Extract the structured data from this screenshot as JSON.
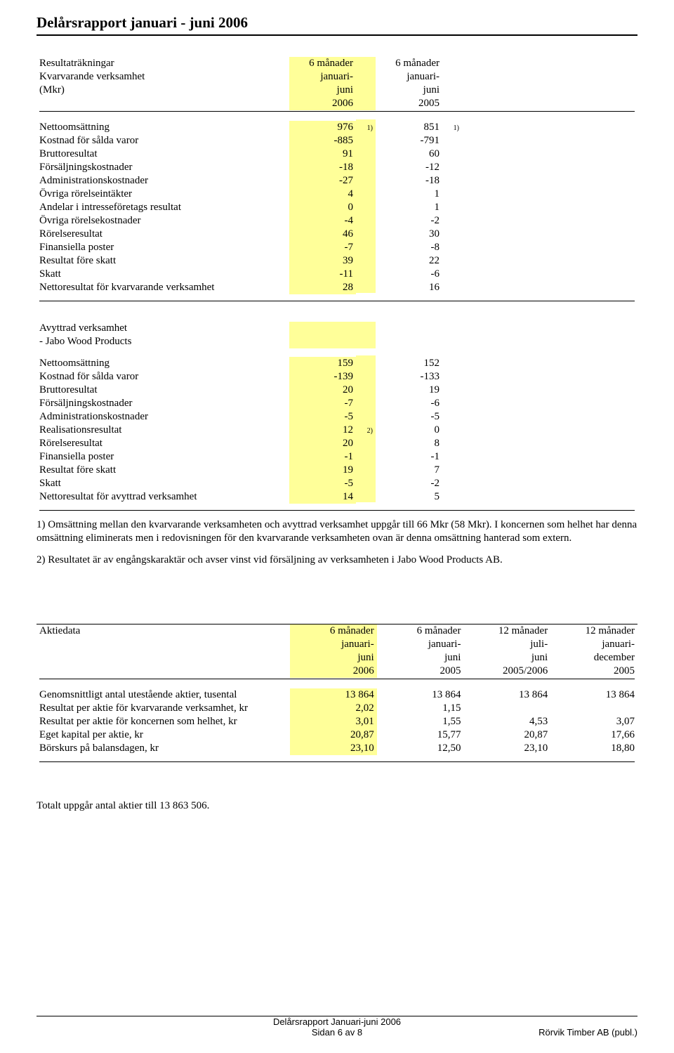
{
  "title": "Delårsrapport januari - juni 2006",
  "colors": {
    "highlight": "#ffff99",
    "text": "#000000",
    "bg": "#ffffff"
  },
  "t1": {
    "h1": {
      "r1": "Resultaträkningar",
      "r2": "Kvarvarande verksamhet",
      "r3": "(Mkr)"
    },
    "h2": {
      "l1": "6 månader",
      "l2": "januari-",
      "l3": "juni",
      "l4": "2006"
    },
    "h3": {
      "l1": "6 månader",
      "l2": "januari-",
      "l3": "juni",
      "l4": "2005"
    },
    "rows": [
      {
        "label": "Nettoomsättning",
        "a": "976",
        "an": "1)",
        "b": "851",
        "bn": "1)",
        "bold": false
      },
      {
        "label": "Kostnad för sålda varor",
        "a": "-885",
        "an": "",
        "b": "-791",
        "bn": "",
        "bold": false
      },
      {
        "label": "Bruttoresultat",
        "a": "91",
        "an": "",
        "b": "60",
        "bn": "",
        "bold": true
      },
      {
        "label": "Försäljningskostnader",
        "a": "-18",
        "an": "",
        "b": "-12",
        "bn": "",
        "bold": false
      },
      {
        "label": "Administrationskostnader",
        "a": "-27",
        "an": "",
        "b": "-18",
        "bn": "",
        "bold": false
      },
      {
        "label": "Övriga rörelseintäkter",
        "a": "4",
        "an": "",
        "b": "1",
        "bn": "",
        "bold": false
      },
      {
        "label": "Andelar i intresseföretags resultat",
        "a": "0",
        "an": "",
        "b": "1",
        "bn": "",
        "bold": false
      },
      {
        "label": "Övriga rörelsekostnader",
        "a": "-4",
        "an": "",
        "b": "-2",
        "bn": "",
        "bold": false
      },
      {
        "label": "Rörelseresultat",
        "a": "46",
        "an": "",
        "b": "30",
        "bn": "",
        "bold": true
      },
      {
        "label": "Finansiella poster",
        "a": "-7",
        "an": "",
        "b": "-8",
        "bn": "",
        "bold": false
      },
      {
        "label": "Resultat före skatt",
        "a": "39",
        "an": "",
        "b": "22",
        "bn": "",
        "bold": true
      },
      {
        "label": "Skatt",
        "a": "-11",
        "an": "",
        "b": "-6",
        "bn": "",
        "bold": false
      },
      {
        "label": "Nettoresultat för kvarvarande verksamhet",
        "a": "28",
        "an": "",
        "b": "16",
        "bn": "",
        "bold": true
      }
    ]
  },
  "t2": {
    "h1": {
      "r1": "Avyttrad verksamhet",
      "r2": " - Jabo Wood Products"
    },
    "rows": [
      {
        "label": "Nettoomsättning",
        "a": "159",
        "an": "",
        "b": "152",
        "bn": "",
        "bold": false
      },
      {
        "label": "Kostnad för sålda varor",
        "a": "-139",
        "an": "",
        "b": "-133",
        "bn": "",
        "bold": false
      },
      {
        "label": "Bruttoresultat",
        "a": "20",
        "an": "",
        "b": "19",
        "bn": "",
        "bold": true
      },
      {
        "label": "Försäljningskostnader",
        "a": "-7",
        "an": "",
        "b": "-6",
        "bn": "",
        "bold": false
      },
      {
        "label": "Administrationskostnader",
        "a": "-5",
        "an": "",
        "b": "-5",
        "bn": "",
        "bold": false
      },
      {
        "label": "Realisationsresultat",
        "a": "12",
        "an": "2)",
        "b": "0",
        "bn": "",
        "bold": false
      },
      {
        "label": "Rörelseresultat",
        "a": "20",
        "an": "",
        "b": "8",
        "bn": "",
        "bold": true
      },
      {
        "label": "Finansiella poster",
        "a": "-1",
        "an": "",
        "b": "-1",
        "bn": "",
        "bold": false
      },
      {
        "label": "Resultat före skatt",
        "a": "19",
        "an": "",
        "b": "7",
        "bn": "",
        "bold": true
      },
      {
        "label": "Skatt",
        "a": "-5",
        "an": "",
        "b": "-2",
        "bn": "",
        "bold": false
      },
      {
        "label": "Nettoresultat för avyttrad verksamhet",
        "a": "14",
        "an": "",
        "b": "5",
        "bn": "",
        "bold": true
      }
    ]
  },
  "notes": {
    "n1": "1) Omsättning mellan den kvarvarande verksamheten och avyttrad verksamhet uppgår till 66 Mkr (58 Mkr). I koncernen som helhet har denna omsättning eliminerats men i redovisningen för den kvarvarande verksamheten ovan är denna omsättning hanterad som extern.",
    "n2": "2) Resultatet är av engångskaraktär och avser vinst vid försäljning av verksamheten i Jabo Wood Products AB."
  },
  "t3": {
    "h1": "Aktiedata",
    "cols": [
      {
        "l1": "6 månader",
        "l2": "januari-",
        "l3": "juni",
        "l4": "2006",
        "hl": true
      },
      {
        "l1": "6 månader",
        "l2": "januari-",
        "l3": "juni",
        "l4": "2005",
        "hl": false
      },
      {
        "l1": "12 månader",
        "l2": "juli-",
        "l3": "juni",
        "l4": "2005/2006",
        "hl": false
      },
      {
        "l1": "12 månader",
        "l2": "januari-",
        "l3": "december",
        "l4": "2005",
        "hl": false
      }
    ],
    "rows": [
      {
        "label": "Genomsnittligt antal utestående aktier, tusental",
        "v": [
          "13 864",
          "13 864",
          "13 864",
          "13 864"
        ]
      },
      {
        "label": "Resultat per aktie för kvarvarande verksamhet, kr",
        "v": [
          "2,02",
          "1,15",
          "",
          ""
        ]
      },
      {
        "label": "Resultat per aktie för koncernen som helhet, kr",
        "v": [
          "3,01",
          "1,55",
          "4,53",
          "3,07"
        ]
      },
      {
        "label": "Eget kapital per aktie, kr",
        "v": [
          "20,87",
          "15,77",
          "20,87",
          "17,66"
        ]
      },
      {
        "label": "Börskurs på balansdagen, kr",
        "v": [
          "23,10",
          "12,50",
          "23,10",
          "18,80"
        ]
      }
    ]
  },
  "aktietotal": "Totalt uppgår antal aktier till 13 863 506.",
  "footer": {
    "l1": "Delårsrapport Januari-juni 2006",
    "l2": "Sidan 6 av 8",
    "right": "Rörvik Timber AB (publ.)"
  }
}
